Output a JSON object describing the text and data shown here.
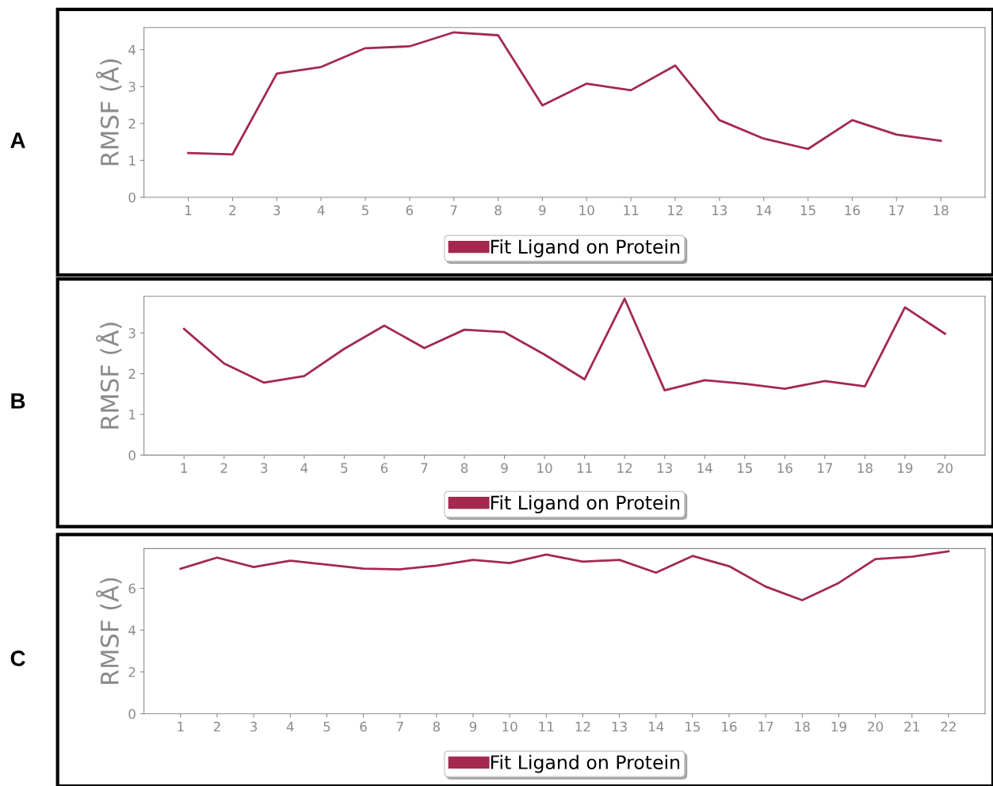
{
  "chart_data": [
    {
      "type": "line",
      "ylabel": "RMSF (Å)",
      "annotations": [
        "A"
      ],
      "x": [
        1,
        2,
        3,
        4,
        5,
        6,
        7,
        8,
        9,
        10,
        11,
        12,
        13,
        14,
        15,
        16,
        17,
        18
      ],
      "xlim": [
        0,
        19
      ],
      "xticks": [
        1,
        2,
        3,
        4,
        5,
        6,
        7,
        8,
        9,
        10,
        11,
        12,
        13,
        14,
        15,
        16,
        17,
        18
      ],
      "ylim": [
        0,
        4.6
      ],
      "yticks": [
        0,
        1,
        2,
        3,
        4
      ],
      "legend": "bottom",
      "grid": false,
      "series": [
        {
          "name": "Fit Ligand on Protein",
          "color": "#a3294f",
          "values": [
            1.2,
            1.16,
            3.35,
            3.53,
            4.04,
            4.09,
            4.47,
            4.39,
            2.49,
            3.08,
            2.9,
            3.57,
            2.09,
            1.59,
            1.31,
            2.09,
            1.7,
            1.53
          ]
        }
      ]
    },
    {
      "type": "line",
      "ylabel": "RMSF (Å)",
      "annotations": [
        "B"
      ],
      "x": [
        1,
        2,
        3,
        4,
        5,
        6,
        7,
        8,
        9,
        10,
        11,
        12,
        13,
        14,
        15,
        16,
        17,
        18,
        19,
        20
      ],
      "xlim": [
        0,
        21
      ],
      "xticks": [
        1,
        2,
        3,
        4,
        5,
        6,
        7,
        8,
        9,
        10,
        11,
        12,
        13,
        14,
        15,
        16,
        17,
        18,
        19,
        20
      ],
      "ylim": [
        0,
        3.9
      ],
      "yticks": [
        0,
        1,
        2,
        3
      ],
      "legend": "bottom",
      "grid": false,
      "series": [
        {
          "name": "Fit Ligand on Protein",
          "color": "#a3294f",
          "values": [
            3.1,
            2.25,
            1.78,
            1.94,
            2.61,
            3.18,
            2.63,
            3.08,
            3.02,
            2.47,
            1.86,
            3.84,
            1.59,
            1.84,
            1.75,
            1.63,
            1.82,
            1.69,
            3.63,
            2.98
          ]
        }
      ]
    },
    {
      "type": "line",
      "ylabel": "RMSF (Å)",
      "annotations": [
        "C"
      ],
      "x": [
        1,
        2,
        3,
        4,
        5,
        6,
        7,
        8,
        9,
        10,
        11,
        12,
        13,
        14,
        15,
        16,
        17,
        18,
        19,
        20,
        21,
        22
      ],
      "xlim": [
        0,
        23
      ],
      "xticks": [
        1,
        2,
        3,
        4,
        5,
        6,
        7,
        8,
        9,
        10,
        11,
        12,
        13,
        14,
        15,
        16,
        17,
        18,
        19,
        20,
        21,
        22
      ],
      "ylim": [
        0,
        7.9
      ],
      "yticks": [
        0,
        2,
        4,
        6
      ],
      "legend": "bottom",
      "grid": false,
      "series": [
        {
          "name": "Fit Ligand on Protein",
          "color": "#a3294f",
          "values": [
            6.94,
            7.47,
            7.02,
            7.32,
            7.13,
            6.94,
            6.91,
            7.09,
            7.36,
            7.21,
            7.62,
            7.28,
            7.36,
            6.75,
            7.55,
            7.06,
            6.08,
            5.43,
            6.26,
            7.4,
            7.51,
            7.77
          ]
        }
      ]
    }
  ]
}
